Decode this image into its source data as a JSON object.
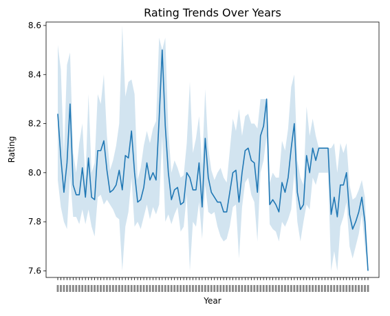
{
  "chart_data": {
    "type": "line",
    "title": "Rating Trends Over Years",
    "xlabel": "Year",
    "ylabel": "Rating",
    "ylim": [
      7.573,
      8.614
    ],
    "yticks": [
      "7.6",
      "7.8",
      "8.0",
      "8.2",
      "8.4",
      "8.6"
    ],
    "grid": false,
    "legend": "none",
    "line_color": "#1f77b4",
    "band_color": "#1f77b4",
    "x_tick_labels": "overlapping year labels, illegible",
    "series": [
      {
        "values": [
          8.24,
          8.06,
          7.92,
          8.04,
          8.28,
          7.95,
          7.91,
          7.91,
          8.02,
          7.9,
          8.06,
          7.9,
          7.89,
          8.09,
          8.09,
          8.13,
          8.01,
          7.92,
          7.93,
          7.95,
          8.01,
          7.93,
          8.07,
          8.06,
          8.17,
          8.0,
          7.88,
          7.89,
          7.94,
          8.04,
          7.97,
          8.0,
          7.97,
          8.22,
          8.5,
          8.19,
          8.0,
          7.89,
          7.93,
          7.94,
          7.87,
          7.88,
          8.0,
          7.98,
          7.93,
          7.93,
          8.04,
          7.86,
          8.14,
          7.98,
          7.92,
          7.9,
          7.88,
          7.88,
          7.84,
          7.84,
          7.92,
          8.0,
          8.01,
          7.88,
          8.0,
          8.09,
          8.1,
          8.05,
          8.04,
          7.92,
          8.15,
          8.19,
          8.3,
          7.87,
          7.89,
          7.87,
          7.84,
          7.96,
          7.92,
          7.98,
          8.1,
          8.2,
          7.92,
          7.85,
          7.87,
          8.07,
          8.0,
          8.1,
          8.05,
          8.1,
          8.1,
          8.1,
          8.1,
          7.83,
          7.9,
          7.82,
          7.95,
          7.95,
          8.0,
          7.83,
          7.77,
          7.8,
          7.84,
          7.9,
          7.8,
          7.6
        ],
        "lower": [
          7.97,
          7.86,
          7.8,
          7.77,
          7.99,
          7.82,
          7.82,
          7.79,
          7.85,
          7.79,
          7.85,
          7.78,
          7.74,
          7.9,
          7.91,
          7.87,
          7.89,
          7.87,
          7.85,
          7.82,
          7.81,
          7.6,
          7.78,
          7.84,
          7.98,
          7.78,
          7.8,
          7.77,
          7.82,
          7.87,
          7.81,
          7.86,
          7.83,
          7.87,
          8.15,
          7.8,
          7.83,
          7.79,
          7.83,
          7.86,
          7.76,
          7.78,
          7.91,
          7.6,
          7.8,
          7.78,
          7.88,
          7.73,
          7.95,
          7.84,
          7.83,
          7.84,
          7.78,
          7.74,
          7.72,
          7.73,
          7.78,
          7.86,
          7.87,
          7.65,
          7.86,
          7.96,
          7.98,
          7.91,
          7.88,
          7.72,
          8.0,
          8.05,
          8.15,
          7.79,
          7.77,
          7.76,
          7.72,
          7.8,
          7.78,
          7.81,
          7.85,
          8.0,
          7.8,
          7.72,
          7.8,
          7.87,
          7.85,
          7.98,
          7.95,
          8.0,
          8.0,
          8.0,
          8.0,
          7.6,
          7.68,
          7.6,
          7.78,
          7.82,
          7.88,
          7.7,
          7.65,
          7.7,
          7.75,
          7.83,
          7.7,
          7.6
        ],
        "upper": [
          8.52,
          8.42,
          8.07,
          8.44,
          8.49,
          8.08,
          8.0,
          8.12,
          8.2,
          7.97,
          8.32,
          8.0,
          8.04,
          8.32,
          8.28,
          8.4,
          8.15,
          8.01,
          8.05,
          8.11,
          8.2,
          8.6,
          8.31,
          8.37,
          8.38,
          8.32,
          7.97,
          8.02,
          8.11,
          8.17,
          8.12,
          8.18,
          8.21,
          8.55,
          8.5,
          8.55,
          8.17,
          8.0,
          8.05,
          8.02,
          7.98,
          7.99,
          8.12,
          8.37,
          8.08,
          8.14,
          8.23,
          8.03,
          8.34,
          8.1,
          8.01,
          7.97,
          8.0,
          8.02,
          7.98,
          7.96,
          8.09,
          8.22,
          8.17,
          8.26,
          8.15,
          8.23,
          8.24,
          8.2,
          8.2,
          8.18,
          8.3,
          8.3,
          8.3,
          7.96,
          8.0,
          7.98,
          7.98,
          8.13,
          8.09,
          8.18,
          8.35,
          8.4,
          8.05,
          7.98,
          7.95,
          8.27,
          8.15,
          8.22,
          8.15,
          8.1,
          8.1,
          8.1,
          8.1,
          8.1,
          8.12,
          8.0,
          8.12,
          8.08,
          8.12,
          7.95,
          7.89,
          7.9,
          7.93,
          7.97,
          7.9,
          7.6
        ]
      }
    ]
  }
}
